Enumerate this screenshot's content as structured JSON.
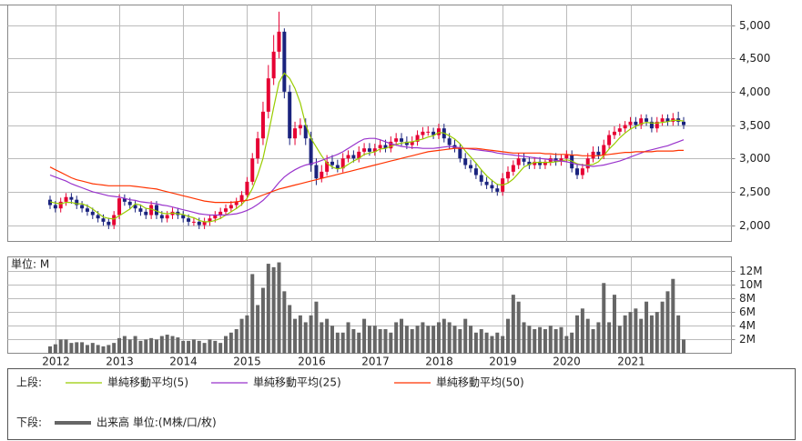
{
  "chart_data": {
    "type": "candlestick",
    "categories": [
      null,
      "2012",
      null,
      null,
      null,
      null,
      null,
      null,
      null,
      null,
      null,
      null,
      null,
      "2013",
      null,
      null,
      null,
      null,
      null,
      null,
      null,
      null,
      null,
      null,
      null,
      "2014",
      null,
      null,
      null,
      null,
      null,
      null,
      null,
      null,
      null,
      null,
      null,
      "2015",
      null,
      null,
      null,
      null,
      null,
      null,
      null,
      null,
      null,
      null,
      null,
      "2016",
      null,
      null,
      null,
      null,
      null,
      null,
      null,
      null,
      null,
      null,
      null,
      "2017",
      null,
      null,
      null,
      null,
      null,
      null,
      null,
      null,
      null,
      null,
      null,
      "2018",
      null,
      null,
      null,
      null,
      null,
      null,
      null,
      null,
      null,
      null,
      null,
      "2019",
      null,
      null,
      null,
      null,
      null,
      null,
      null,
      null,
      null,
      null,
      null,
      "2020",
      null,
      null,
      null,
      null,
      null,
      null,
      null,
      null,
      null,
      null,
      null,
      "2021",
      null,
      null,
      null,
      null,
      null,
      null,
      null,
      null,
      null,
      null
    ],
    "open": [
      2380,
      2300,
      2250,
      2350,
      2420,
      2380,
      2300,
      2250,
      2200,
      2150,
      2100,
      2050,
      2000,
      2150,
      2400,
      2350,
      2300,
      2250,
      2200,
      2150,
      2300,
      2150,
      2100,
      2150,
      2200,
      2150,
      2100,
      2050,
      2050,
      2000,
      2050,
      2100,
      2150,
      2200,
      2250,
      2300,
      2350,
      2450,
      2650,
      3000,
      3300,
      3700,
      4200,
      4600,
      4900,
      4000,
      3300,
      3450,
      3500,
      3300,
      2900,
      2700,
      2800,
      2950,
      2900,
      2850,
      3000,
      3050,
      3000,
      3100,
      3150,
      3100,
      3150,
      3200,
      3150,
      3250,
      3300,
      3250,
      3200,
      3250,
      3350,
      3400,
      3400,
      3350,
      3450,
      3300,
      3200,
      3150,
      3000,
      2900,
      2850,
      2750,
      2650,
      2600,
      2550,
      2500,
      2700,
      2800,
      2900,
      3000,
      2950,
      2900,
      2950,
      2900,
      2950,
      3000,
      2950,
      3000,
      3050,
      2850,
      2750,
      2850,
      3000,
      3100,
      3050,
      3200,
      3350,
      3400,
      3450,
      3500,
      3550,
      3500,
      3600,
      3550,
      3450,
      3550,
      3600,
      3550,
      3600,
      3550
    ],
    "high": [
      2440,
      2360,
      2410,
      2480,
      2480,
      2440,
      2360,
      2310,
      2260,
      2210,
      2160,
      2110,
      2210,
      2460,
      2460,
      2410,
      2360,
      2310,
      2260,
      2360,
      2360,
      2210,
      2210,
      2260,
      2260,
      2210,
      2160,
      2110,
      2110,
      2110,
      2160,
      2210,
      2260,
      2310,
      2360,
      2410,
      2510,
      2720,
      3080,
      3400,
      3850,
      4400,
      4850,
      5200,
      4950,
      4100,
      3550,
      3600,
      3600,
      3400,
      3000,
      2900,
      3050,
      3050,
      2980,
      3080,
      3120,
      3120,
      3180,
      3230,
      3230,
      3220,
      3280,
      3280,
      3330,
      3380,
      3380,
      3330,
      3330,
      3420,
      3470,
      3480,
      3460,
      3520,
      3520,
      3380,
      3280,
      3220,
      3080,
      2980,
      2920,
      2820,
      2720,
      2680,
      2620,
      2780,
      2880,
      2970,
      3080,
      3080,
      3020,
      3020,
      3020,
      2980,
      3050,
      3080,
      3060,
      3120,
      3120,
      2920,
      2920,
      3080,
      3180,
      3180,
      3280,
      3420,
      3480,
      3520,
      3560,
      3620,
      3620,
      3660,
      3660,
      3620,
      3620,
      3660,
      3660,
      3680,
      3700,
      3620
    ],
    "low": [
      2240,
      2190,
      2190,
      2290,
      2320,
      2240,
      2190,
      2140,
      2090,
      2040,
      1990,
      1940,
      1940,
      2090,
      2290,
      2240,
      2190,
      2140,
      2090,
      2090,
      2090,
      2040,
      2040,
      2090,
      2090,
      2040,
      1990,
      1990,
      1940,
      1940,
      1990,
      2040,
      2090,
      2140,
      2190,
      2240,
      2290,
      2400,
      2600,
      2920,
      3200,
      3600,
      4100,
      4500,
      3900,
      3200,
      3200,
      3350,
      3200,
      2800,
      2600,
      2640,
      2740,
      2840,
      2790,
      2790,
      2940,
      2940,
      2940,
      3040,
      3040,
      3040,
      3090,
      3090,
      3090,
      3190,
      3190,
      3140,
      3140,
      3190,
      3290,
      3340,
      3290,
      3290,
      3240,
      3140,
      3090,
      2940,
      2840,
      2790,
      2690,
      2590,
      2540,
      2490,
      2440,
      2440,
      2640,
      2740,
      2840,
      2890,
      2840,
      2840,
      2840,
      2840,
      2890,
      2890,
      2890,
      2940,
      2790,
      2690,
      2690,
      2790,
      2940,
      2990,
      2990,
      3140,
      3290,
      3340,
      3390,
      3440,
      3440,
      3440,
      3490,
      3390,
      3390,
      3490,
      3490,
      3490,
      3490,
      3440
    ],
    "close": [
      2300,
      2250,
      2350,
      2420,
      2380,
      2300,
      2250,
      2200,
      2150,
      2100,
      2050,
      2000,
      2150,
      2400,
      2350,
      2300,
      2250,
      2200,
      2150,
      2300,
      2150,
      2100,
      2150,
      2200,
      2150,
      2100,
      2050,
      2050,
      2000,
      2050,
      2100,
      2150,
      2200,
      2250,
      2300,
      2350,
      2450,
      2650,
      3000,
      3300,
      3700,
      4200,
      4600,
      4900,
      4000,
      3300,
      3450,
      3500,
      3300,
      2900,
      2700,
      2800,
      2950,
      2900,
      2850,
      3000,
      3050,
      3000,
      3100,
      3150,
      3100,
      3150,
      3200,
      3150,
      3250,
      3300,
      3250,
      3200,
      3250,
      3350,
      3400,
      3400,
      3350,
      3450,
      3300,
      3200,
      3150,
      3000,
      2900,
      2850,
      2750,
      2650,
      2600,
      2550,
      2500,
      2700,
      2800,
      2900,
      3000,
      2950,
      2900,
      2950,
      2900,
      2950,
      3000,
      2950,
      3000,
      3050,
      2850,
      2750,
      2850,
      3000,
      3100,
      3050,
      3200,
      3350,
      3400,
      3450,
      3500,
      3550,
      3500,
      3600,
      3550,
      3450,
      3550,
      3600,
      3550,
      3600,
      3550,
      3500
    ],
    "up_color": "#e60033",
    "down_color": "#1a237e",
    "series": [
      {
        "name": "単純移動平均(5)",
        "color": "#99cc00",
        "values": [
          2350,
          2330,
          2320,
          2340,
          2340,
          2320,
          2320,
          2290,
          2240,
          2180,
          2120,
          2100,
          2090,
          2140,
          2190,
          2240,
          2320,
          2300,
          2250,
          2240,
          2210,
          2180,
          2170,
          2180,
          2170,
          2160,
          2130,
          2110,
          2070,
          2050,
          2050,
          2070,
          2100,
          2150,
          2200,
          2250,
          2310,
          2400,
          2550,
          2750,
          3000,
          3370,
          3760,
          4140,
          4280,
          4200,
          4050,
          3830,
          3510,
          3300,
          3170,
          3040,
          2930,
          2870,
          2840,
          2860,
          2910,
          2960,
          3000,
          3060,
          3080,
          3100,
          3140,
          3150,
          3180,
          3210,
          3230,
          3240,
          3250,
          3270,
          3290,
          3320,
          3340,
          3390,
          3380,
          3340,
          3290,
          3220,
          3110,
          3020,
          2930,
          2830,
          2740,
          2670,
          2610,
          2600,
          2630,
          2690,
          2780,
          2870,
          2910,
          2940,
          2940,
          2940,
          2940,
          2950,
          2960,
          2980,
          2960,
          2920,
          2900,
          2900,
          2910,
          2950,
          3040,
          3140,
          3220,
          3310,
          3380,
          3440,
          3480,
          3520,
          3540,
          3530,
          3530,
          3540,
          3550,
          3570,
          3570,
          3560
        ]
      },
      {
        "name": "単純移動平均(25)",
        "color": "#9933cc",
        "values": [
          2750,
          2720,
          2690,
          2660,
          2620,
          2590,
          2560,
          2530,
          2500,
          2480,
          2460,
          2440,
          2430,
          2420,
          2400,
          2380,
          2370,
          2350,
          2340,
          2330,
          2320,
          2300,
          2290,
          2270,
          2250,
          2230,
          2210,
          2190,
          2170,
          2160,
          2150,
          2150,
          2150,
          2150,
          2160,
          2170,
          2190,
          2220,
          2260,
          2310,
          2370,
          2450,
          2540,
          2640,
          2720,
          2780,
          2830,
          2870,
          2900,
          2920,
          2940,
          2970,
          3000,
          3030,
          3060,
          3100,
          3150,
          3200,
          3250,
          3290,
          3300,
          3300,
          3280,
          3250,
          3220,
          3200,
          3180,
          3170,
          3160,
          3160,
          3150,
          3150,
          3150,
          3160,
          3170,
          3180,
          3170,
          3160,
          3150,
          3140,
          3130,
          3120,
          3110,
          3100,
          3080,
          3070,
          3060,
          3050,
          3040,
          3030,
          3020,
          3010,
          3000,
          2990,
          2980,
          2970,
          2960,
          2950,
          2930,
          2910,
          2900,
          2890,
          2880,
          2890,
          2900,
          2920,
          2940,
          2960,
          2990,
          3020,
          3050,
          3080,
          3110,
          3130,
          3150,
          3170,
          3190,
          3220,
          3250,
          3280
        ]
      },
      {
        "name": "単純移動平均(50)",
        "color": "#ff3300",
        "values": [
          2870,
          2830,
          2790,
          2750,
          2710,
          2680,
          2660,
          2640,
          2620,
          2610,
          2600,
          2590,
          2590,
          2590,
          2590,
          2590,
          2580,
          2570,
          2560,
          2550,
          2540,
          2520,
          2500,
          2480,
          2460,
          2440,
          2420,
          2400,
          2380,
          2360,
          2350,
          2340,
          2340,
          2340,
          2340,
          2350,
          2360,
          2370,
          2390,
          2420,
          2450,
          2480,
          2510,
          2540,
          2560,
          2580,
          2600,
          2620,
          2640,
          2660,
          2680,
          2700,
          2720,
          2740,
          2760,
          2780,
          2800,
          2820,
          2840,
          2860,
          2880,
          2900,
          2920,
          2940,
          2960,
          2980,
          3000,
          3020,
          3040,
          3060,
          3080,
          3100,
          3110,
          3120,
          3130,
          3140,
          3150,
          3150,
          3150,
          3150,
          3150,
          3140,
          3130,
          3120,
          3110,
          3100,
          3090,
          3080,
          3080,
          3080,
          3080,
          3080,
          3080,
          3070,
          3070,
          3060,
          3060,
          3060,
          3050,
          3050,
          3040,
          3040,
          3040,
          3040,
          3050,
          3060,
          3070,
          3080,
          3090,
          3090,
          3100,
          3100,
          3100,
          3100,
          3110,
          3110,
          3110,
          3110,
          3120,
          3120
        ]
      }
    ],
    "ylim": [
      1755,
      5300
    ],
    "yticks": [
      {
        "value": 2000,
        "label": "2,000"
      },
      {
        "value": 2500,
        "label": "2,500"
      },
      {
        "value": 3000,
        "label": "3,000"
      },
      {
        "value": 3500,
        "label": "3,500"
      },
      {
        "value": 4000,
        "label": "4,000"
      },
      {
        "value": 4500,
        "label": "4,500"
      },
      {
        "value": 5000,
        "label": "5,000"
      }
    ],
    "grid": true,
    "volume": {
      "type": "bar",
      "unit_label": "単位: M",
      "name": "出来高 単位:(M株/口/枚)",
      "color": "#666666",
      "values": [
        1.0,
        1.3,
        2.0,
        2.0,
        1.5,
        1.6,
        1.6,
        1.2,
        1.5,
        1.2,
        1.0,
        1.2,
        1.5,
        2.2,
        2.5,
        2.0,
        2.5,
        1.8,
        2.0,
        2.2,
        2.0,
        2.5,
        2.7,
        2.5,
        2.3,
        1.8,
        1.8,
        2.0,
        1.8,
        1.5,
        2.0,
        1.8,
        1.5,
        2.5,
        3.0,
        3.5,
        5.0,
        5.5,
        11.5,
        7.0,
        9.5,
        13.0,
        12.5,
        13.2,
        9.0,
        7.0,
        5.0,
        5.5,
        4.5,
        5.5,
        7.5,
        4.5,
        5.0,
        4.0,
        3.0,
        3.0,
        4.5,
        3.5,
        3.0,
        5.0,
        4.0,
        4.0,
        3.5,
        3.5,
        3.0,
        4.5,
        5.0,
        4.0,
        3.5,
        4.0,
        4.5,
        4.0,
        4.0,
        4.5,
        5.0,
        4.5,
        4.0,
        3.5,
        5.0,
        4.0,
        3.0,
        3.5,
        3.0,
        2.5,
        3.0,
        2.5,
        5.0,
        8.5,
        7.5,
        4.5,
        4.0,
        3.5,
        3.8,
        3.5,
        4.0,
        3.5,
        3.8,
        2.5,
        3.0,
        5.5,
        6.5,
        5.0,
        3.5,
        4.5,
        10.2,
        4.5,
        8.5,
        4.0,
        5.5,
        6.0,
        6.5,
        5.0,
        7.5,
        5.5,
        6.0,
        7.5,
        9.0,
        10.8,
        5.5,
        2.0
      ],
      "ylim": [
        0,
        14
      ],
      "yticks": [
        {
          "value": 2,
          "label": "2M"
        },
        {
          "value": 4,
          "label": "4M"
        },
        {
          "value": 6,
          "label": "6M"
        },
        {
          "value": 8,
          "label": "8M"
        },
        {
          "value": 10,
          "label": "10M"
        },
        {
          "value": 12,
          "label": "12M"
        }
      ]
    },
    "legend": {
      "upper": "上段:",
      "lower": "下段:"
    }
  }
}
